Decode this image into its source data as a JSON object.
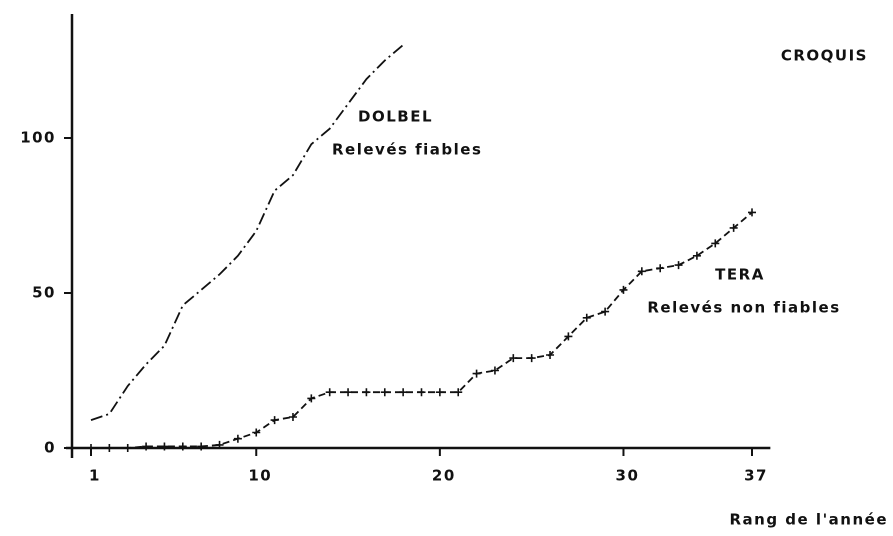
{
  "chart_data": {
    "type": "line",
    "title": "CROQUIS",
    "x_label": "Rang de l'année",
    "x": [
      1,
      2,
      3,
      4,
      5,
      6,
      7,
      8,
      9,
      10,
      11,
      12,
      13,
      14,
      15,
      16,
      17,
      18,
      19,
      20,
      21,
      22,
      23,
      24,
      25,
      26,
      27,
      28,
      29,
      30,
      31,
      32,
      33,
      34,
      35,
      36,
      37
    ],
    "series": [
      {
        "name": "DOLBEL",
        "subtitle": "Relevés fiables",
        "color": "#111111",
        "style": "dashdot",
        "markers": false,
        "values": [
          9,
          11,
          20,
          27,
          33,
          46,
          51,
          56,
          62,
          70,
          83,
          88,
          98,
          103,
          111,
          119,
          125,
          130,
          null,
          null,
          null,
          null,
          null,
          null,
          null,
          null,
          null,
          null,
          null,
          null,
          null,
          null,
          null,
          null,
          null,
          null,
          null
        ]
      },
      {
        "name": "TERA",
        "subtitle": "Relevés non fiables",
        "color": "#111111",
        "style": "dashed",
        "markers": true,
        "values": [
          0,
          0,
          0,
          0.5,
          0.5,
          0.5,
          0.5,
          1,
          3,
          5,
          9,
          10,
          16,
          18,
          18,
          18,
          18,
          18,
          18,
          18,
          18,
          24,
          25,
          29,
          29,
          30,
          36,
          42,
          44,
          51,
          57,
          58,
          59,
          62,
          66,
          71,
          76
        ]
      }
    ],
    "xlim": [
      0,
      38
    ],
    "xticks": [
      1,
      10,
      20,
      30,
      37
    ],
    "ylim": [
      0,
      140
    ],
    "yticks": [
      0,
      50,
      100
    ]
  }
}
